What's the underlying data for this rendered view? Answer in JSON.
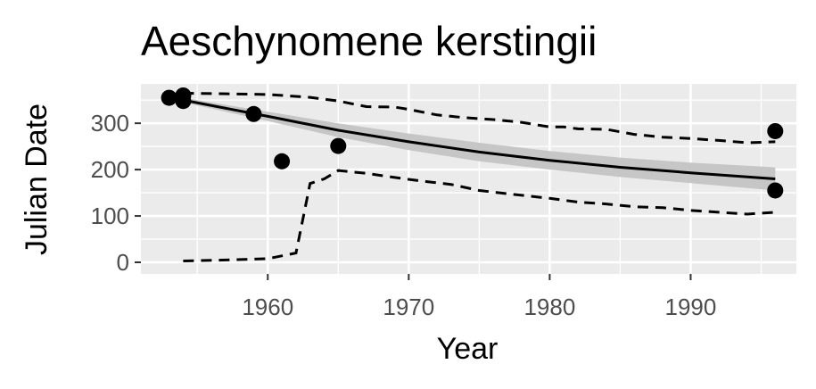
{
  "chart_data": {
    "type": "scatter",
    "title": "Aeschynomene kerstingii",
    "xlabel": "Year",
    "ylabel": "Julian Date",
    "xlim": [
      1951,
      1997.5
    ],
    "ylim": [
      -25,
      385
    ],
    "x_ticks": [
      1960,
      1970,
      1980,
      1990
    ],
    "y_ticks": [
      0,
      100,
      200,
      300
    ],
    "grid": true,
    "legend": "none",
    "points": [
      {
        "x": 1953,
        "y": 355
      },
      {
        "x": 1954,
        "y": 360
      },
      {
        "x": 1954,
        "y": 348
      },
      {
        "x": 1959,
        "y": 320
      },
      {
        "x": 1961,
        "y": 218
      },
      {
        "x": 1965,
        "y": 251
      },
      {
        "x": 1996,
        "y": 283
      },
      {
        "x": 1996,
        "y": 155
      }
    ],
    "fit_line": [
      [
        1954,
        350
      ],
      [
        1960,
        315
      ],
      [
        1965,
        285
      ],
      [
        1970,
        260
      ],
      [
        1975,
        238
      ],
      [
        1980,
        220
      ],
      [
        1985,
        205
      ],
      [
        1990,
        193
      ],
      [
        1996,
        180
      ]
    ],
    "confidence_band": {
      "upper": [
        [
          1954,
          355
        ],
        [
          1960,
          325
        ],
        [
          1965,
          300
        ],
        [
          1970,
          278
        ],
        [
          1975,
          258
        ],
        [
          1980,
          240
        ],
        [
          1985,
          226
        ],
        [
          1990,
          215
        ],
        [
          1996,
          205
        ]
      ],
      "lower": [
        [
          1954,
          345
        ],
        [
          1960,
          305
        ],
        [
          1965,
          270
        ],
        [
          1970,
          242
        ],
        [
          1975,
          218
        ],
        [
          1980,
          200
        ],
        [
          1985,
          184
        ],
        [
          1990,
          171
        ],
        [
          1996,
          155
        ]
      ]
    },
    "upper_bound": [
      [
        1954,
        365
      ],
      [
        1960,
        362
      ],
      [
        1963,
        356
      ],
      [
        1965,
        348
      ],
      [
        1967,
        336
      ],
      [
        1969,
        335
      ],
      [
        1970,
        330
      ],
      [
        1972,
        318
      ],
      [
        1974,
        312
      ],
      [
        1976,
        308
      ],
      [
        1978,
        302
      ],
      [
        1980,
        292
      ],
      [
        1981,
        292
      ],
      [
        1982,
        288
      ],
      [
        1984,
        287
      ],
      [
        1986,
        276
      ],
      [
        1988,
        270
      ],
      [
        1990,
        267
      ],
      [
        1992,
        263
      ],
      [
        1994,
        258
      ],
      [
        1996,
        260
      ]
    ],
    "lower_bound": [
      [
        1954,
        3
      ],
      [
        1957,
        5
      ],
      [
        1960,
        8
      ],
      [
        1962,
        20
      ],
      [
        1963,
        170
      ],
      [
        1964,
        180
      ],
      [
        1965,
        198
      ],
      [
        1967,
        192
      ],
      [
        1969,
        183
      ],
      [
        1971,
        175
      ],
      [
        1973,
        168
      ],
      [
        1975,
        155
      ],
      [
        1977,
        148
      ],
      [
        1980,
        138
      ],
      [
        1982,
        130
      ],
      [
        1984,
        126
      ],
      [
        1986,
        120
      ],
      [
        1988,
        118
      ],
      [
        1990,
        112
      ],
      [
        1992,
        108
      ],
      [
        1994,
        104
      ],
      [
        1996,
        108
      ]
    ],
    "colors": {
      "panel": "#ebebeb",
      "grid": "#ffffff",
      "band": "#c6c6c6",
      "line": "#000000",
      "points": "#000000",
      "tick_text": "#4d4d4d",
      "tick_mark": "#333333"
    }
  }
}
